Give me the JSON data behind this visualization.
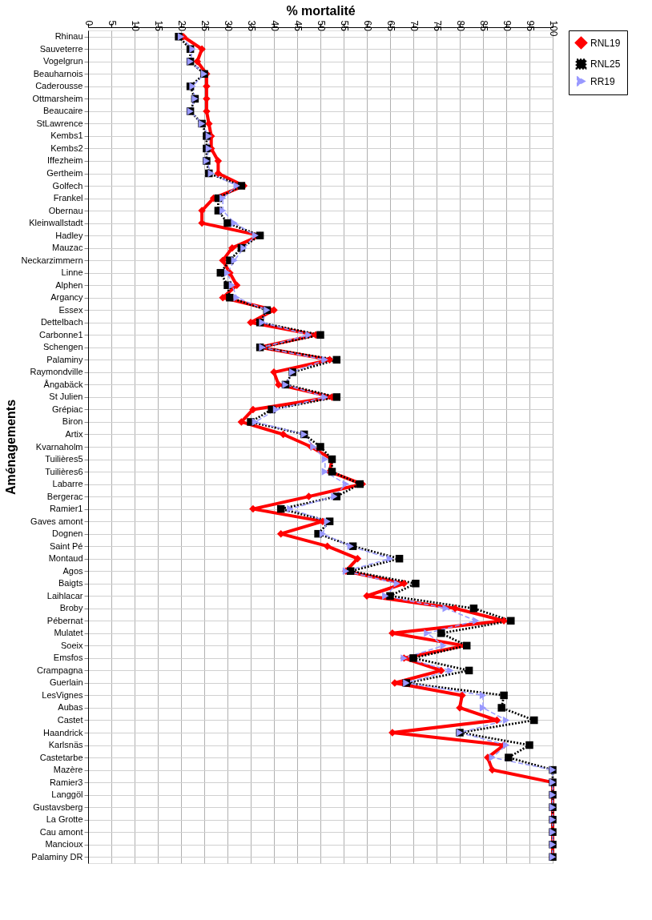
{
  "chart_data": {
    "type": "line",
    "xlabel": "% mortalité",
    "ylabel": "Aménagements",
    "categories": [
      "Rhinau",
      "Sauveterre",
      "Vogelgrun",
      "Beauharnois",
      "Caderousse",
      "Ottmarsheim",
      "Beaucaire",
      "StLawrence",
      "Kembs1",
      "Kembs2",
      "Iffezheim",
      "Gertheim",
      "Golfech",
      "Frankel",
      "Obernau",
      "Kleinwallstadt",
      "Hadley",
      "Mauzac",
      "Neckarzimmern",
      "Linne",
      "Alphen",
      "Argancy",
      "Essex",
      "Dettelbach",
      "Carbonne1",
      "Schengen",
      "Palaminy",
      "Raymondville",
      "Ångabäck",
      "St Julien",
      "Grépiac",
      "Biron",
      "Artix",
      "Kvarnaholm",
      "Tuilières5",
      "Tuilières6",
      "Labarre",
      "Bergerac",
      "Ramier1",
      "Gaves amont",
      "Dognen",
      "Saint Pé",
      "Montaud",
      "Agos",
      "Baigts",
      "Laihlacar",
      "Broby",
      "Pébernat",
      "Mulatet",
      "Soeix",
      "Emsfos",
      "Crampagna",
      "Guerlain",
      "LesVignes",
      "Aubas",
      "Castet",
      "Haandrick",
      "Karlsnäs",
      "Castetarbe",
      "Mazère",
      "Ramier3",
      "Langgöl",
      "Gustavsberg",
      "La Grotte",
      "Cau amont",
      "Mancioux",
      "Palaminy DR"
    ],
    "orientation": "horizontal",
    "xlim": [
      0,
      100
    ],
    "xticks": [
      0,
      5,
      10,
      15,
      20,
      25,
      30,
      35,
      40,
      45,
      50,
      55,
      60,
      65,
      70,
      75,
      80,
      85,
      90,
      95,
      100
    ],
    "grid": true,
    "legend": "right",
    "series": [
      {
        "name": "RNL19",
        "color": "#ff0000",
        "marker": "diamond",
        "line_style": "solid",
        "values": [
          20.5,
          24.5,
          23.5,
          25.5,
          25.5,
          25.5,
          25.5,
          26,
          26.5,
          26.5,
          28,
          28,
          33.5,
          27,
          24.5,
          24.5,
          37,
          31,
          29,
          30.5,
          32,
          29,
          40,
          35,
          49,
          37,
          52,
          40,
          41,
          52.5,
          35.5,
          33,
          42,
          48,
          52.5,
          52,
          59,
          47.5,
          35.5,
          50.5,
          41.5,
          51.5,
          58,
          55.5,
          68,
          60,
          79,
          89.5,
          65.5,
          81,
          68,
          76,
          66,
          80.5,
          80,
          88,
          65.5,
          89.5,
          86,
          87,
          100,
          100,
          100,
          100,
          100,
          100,
          100
        ]
      },
      {
        "name": "RNL25",
        "color": "#000000",
        "marker": "square",
        "line_style": "dotted",
        "values": [
          19.5,
          22,
          22,
          25,
          22,
          23,
          22,
          24.5,
          25.5,
          25.5,
          25.5,
          26,
          33,
          28,
          28,
          30,
          37,
          33,
          30.5,
          28.5,
          30,
          30.5,
          38.5,
          37,
          50,
          37,
          53.5,
          44,
          42.5,
          53.5,
          39.5,
          35,
          46.5,
          50,
          52.5,
          52.5,
          58.5,
          53.5,
          41.5,
          52,
          49.5,
          57,
          67,
          56.5,
          70.5,
          65,
          83,
          91,
          76,
          81.5,
          70,
          82,
          68.5,
          89.5,
          89,
          96,
          80,
          95,
          90.5,
          100,
          100,
          100,
          100,
          100,
          100,
          100,
          100
        ]
      },
      {
        "name": "RR19",
        "color": "#9999ff",
        "marker": "triangle",
        "line_style": "dashed",
        "values": [
          20,
          22.5,
          22,
          25,
          22.5,
          23,
          22,
          24.5,
          26,
          26,
          25.5,
          26.5,
          32,
          29,
          29,
          31.5,
          36,
          33.5,
          31.5,
          30,
          31,
          32,
          38.5,
          37.5,
          47.5,
          37.5,
          51,
          44,
          42.5,
          51,
          40.5,
          36,
          46.5,
          48.5,
          51,
          51,
          55.5,
          53,
          43.5,
          51.5,
          50.5,
          56.5,
          65,
          55.5,
          66.5,
          64,
          77,
          83.5,
          73,
          76.5,
          68,
          78,
          68.5,
          85,
          85,
          90,
          80,
          90,
          87,
          100,
          100,
          100,
          100,
          100,
          100,
          100,
          100
        ]
      }
    ]
  }
}
